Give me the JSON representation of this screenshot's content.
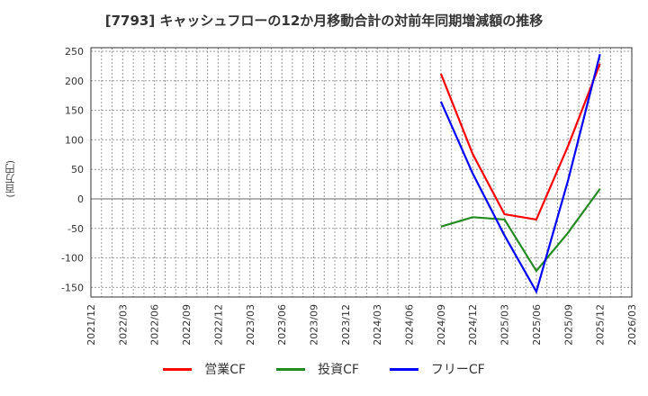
{
  "title": "[7793]  キャッシュフローの12か月移動合計の対前年同期増減額の推移",
  "y_unit_label": "(百万円)",
  "legend": [
    {
      "label": "営業CF",
      "color": "#ff0000"
    },
    {
      "label": "投資CF",
      "color": "#228b22"
    },
    {
      "label": "フリーCF",
      "color": "#0000ff"
    }
  ],
  "chart_data": {
    "type": "line",
    "title": "[7793]  キャッシュフローの12か月移動合計の対前年同期増減額の推移",
    "xlabel": "",
    "ylabel": "(百万円)",
    "x_ticks": [
      "2021/12",
      "2022/03",
      "2022/06",
      "2022/09",
      "2022/12",
      "2023/03",
      "2023/06",
      "2023/09",
      "2023/12",
      "2024/03",
      "2024/06",
      "2024/09",
      "2024/12",
      "2025/03",
      "2025/06",
      "2025/09",
      "2025/12",
      "2026/03"
    ],
    "y_ticks": [
      250,
      200,
      150,
      100,
      50,
      0,
      -50,
      -100,
      -150
    ],
    "ylim": [
      -168,
      255
    ],
    "grid": true,
    "legend_position": "bottom",
    "x": [
      "2024/09",
      "2024/12",
      "2025/03",
      "2025/06",
      "2025/09",
      "2025/12"
    ],
    "series": [
      {
        "name": "営業CF",
        "color": "#ff0000",
        "values": [
          212,
          76,
          -26,
          -35,
          90,
          229
        ]
      },
      {
        "name": "投資CF",
        "color": "#228b22",
        "values": [
          -47,
          -31,
          -35,
          -122,
          -57,
          17
        ]
      },
      {
        "name": "フリーCF",
        "color": "#0000ff",
        "values": [
          165,
          43,
          -62,
          -157,
          32,
          245
        ]
      }
    ]
  }
}
